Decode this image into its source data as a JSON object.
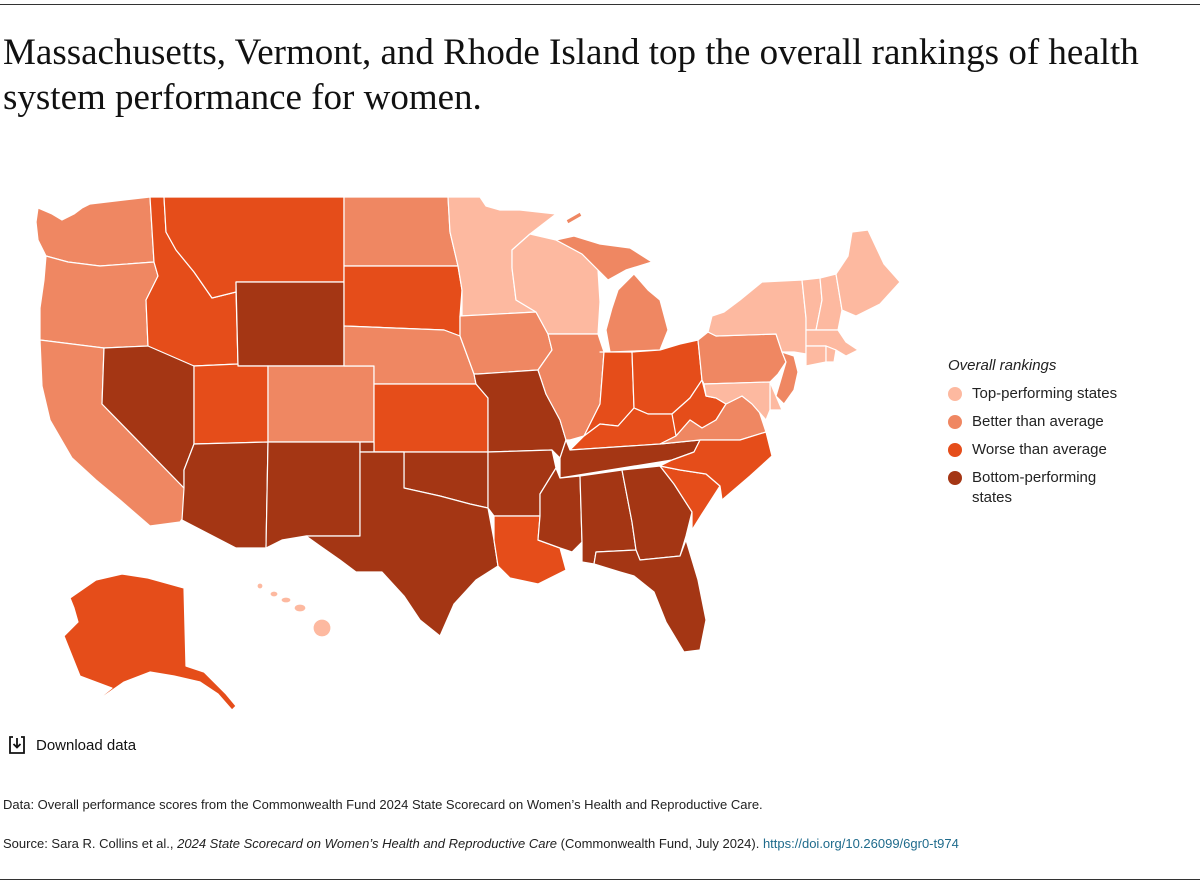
{
  "title": "Massachusetts, Vermont, and Rhode Island top the overall rankings of health system performance for women.",
  "legend": {
    "title": "Overall rankings",
    "items": [
      {
        "key": "top",
        "label": "Top-performing states",
        "color": "#FDB9A0"
      },
      {
        "key": "better",
        "label": "Better than average",
        "color": "#EF8762"
      },
      {
        "key": "worse",
        "label": "Worse than average",
        "color": "#E54D1A"
      },
      {
        "key": "bottom",
        "label": "Bottom-performing states",
        "color": "#A43614"
      }
    ]
  },
  "states": {
    "top": [
      "Minnesota",
      "Wisconsin",
      "New York",
      "Vermont",
      "New Hampshire",
      "Maine",
      "Massachusetts",
      "Rhode Island",
      "Connecticut",
      "Maryland",
      "Delaware",
      "Hawaii"
    ],
    "better": [
      "Washington",
      "Oregon",
      "California",
      "Colorado",
      "North Dakota",
      "Nebraska",
      "Iowa",
      "Illinois",
      "Michigan",
      "Pennsylvania",
      "New Jersey",
      "Virginia"
    ],
    "worse": [
      "Idaho",
      "Montana",
      "Utah",
      "South Dakota",
      "Kansas",
      "Indiana",
      "Ohio",
      "Kentucky",
      "West Virginia",
      "North Carolina",
      "South Carolina",
      "Louisiana",
      "Alaska"
    ],
    "bottom": [
      "Nevada",
      "Wyoming",
      "Arizona",
      "New Mexico",
      "Texas",
      "Oklahoma",
      "Missouri",
      "Arkansas",
      "Tennessee",
      "Mississippi",
      "Alabama",
      "Georgia",
      "Florida"
    ]
  },
  "download": {
    "label": "Download data",
    "icon": "download-icon"
  },
  "footnotes": {
    "data": "Data: Overall performance scores from the Commonwealth Fund 2024 State Scorecard on Women’s Health and Reproductive Care.",
    "source_prefix": "Source: Sara R. Collins et al., ",
    "source_title": "2024 State Scorecard on Women’s Health and Reproductive Care",
    "source_suffix": " (Commonwealth Fund, July 2024). ",
    "source_link": "https://doi.org/10.26099/6gr0-t974"
  }
}
